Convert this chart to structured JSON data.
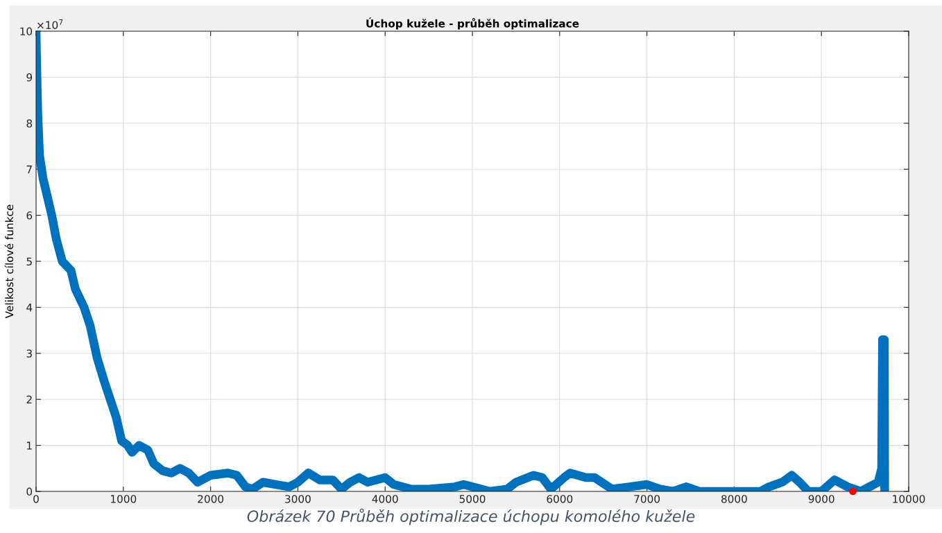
{
  "chart_data": {
    "type": "line",
    "title": "Úchop kužele - průběh optimalizace",
    "ylabel": "Velikost cílové funkce",
    "annotations": [
      "×10$^{7}$",
      "Obrázek 70 Průběh optimalizace úchopu komolého kužele"
    ],
    "xlim": [
      0,
      10000
    ],
    "xticks": [
      0,
      1000,
      2000,
      3000,
      4000,
      5000,
      6000,
      7000,
      8000,
      9000,
      10000
    ],
    "ylim": [
      0,
      10
    ],
    "yticks": [
      0,
      1,
      2,
      3,
      4,
      5,
      6,
      7,
      8,
      9,
      10
    ],
    "grid": true,
    "series": [
      {
        "color": "#0072bd",
        "x": [
          0,
          10,
          20,
          40,
          80,
          130,
          180,
          230,
          300,
          400,
          450,
          550,
          620,
          700,
          780,
          850,
          920,
          980,
          1050,
          1100,
          1180,
          1280,
          1350,
          1450,
          1550,
          1650,
          1750,
          1850,
          2000,
          2200,
          2300,
          2400,
          2480,
          2600,
          2750,
          2900,
          3000,
          3120,
          3250,
          3400,
          3500,
          3600,
          3700,
          3800,
          4000,
          4100,
          4300,
          4500,
          4800,
          4900,
          5000,
          5200,
          5400,
          5500,
          5700,
          5800,
          5900,
          6050,
          6120,
          6300,
          6400,
          6600,
          6800,
          7000,
          7150,
          7300,
          7450,
          7600,
          8000,
          8300,
          8400,
          8550,
          8660,
          8750,
          8850,
          9000,
          9150,
          9300,
          9450,
          9550,
          9650,
          9690,
          9700,
          9720,
          9725
        ],
        "values": [
          10,
          9.0,
          8.2,
          7.3,
          6.8,
          6.4,
          6.0,
          5.5,
          5.0,
          4.8,
          4.4,
          4.0,
          3.6,
          2.9,
          2.4,
          2.0,
          1.6,
          1.1,
          1.0,
          0.85,
          1.0,
          0.9,
          0.6,
          0.45,
          0.4,
          0.5,
          0.4,
          0.2,
          0.35,
          0.4,
          0.35,
          0.1,
          0.05,
          0.2,
          0.15,
          0.1,
          0.2,
          0.4,
          0.25,
          0.25,
          0.05,
          0.2,
          0.3,
          0.2,
          0.3,
          0.15,
          0.05,
          0.05,
          0.1,
          0.15,
          0.1,
          0.0,
          0.05,
          0.2,
          0.35,
          0.3,
          0.05,
          0.3,
          0.4,
          0.3,
          0.3,
          0.05,
          0.1,
          0.15,
          0.05,
          0.0,
          0.1,
          0.0,
          0.0,
          0.0,
          0.1,
          0.2,
          0.35,
          0.2,
          0.0,
          0.0,
          0.25,
          0.1,
          0.0,
          0.1,
          0.2,
          0.5,
          3.3,
          3.3,
          0
        ]
      },
      {
        "type": "scatter",
        "color": "#ff0000",
        "x": [
          9360
        ],
        "values": [
          0
        ]
      }
    ]
  }
}
